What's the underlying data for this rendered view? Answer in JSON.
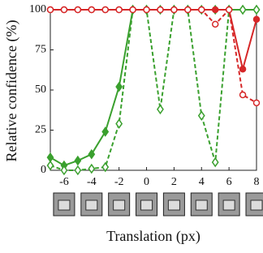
{
  "chart_data": {
    "type": "line",
    "xlabel": "Translation (px)",
    "ylabel": "Relative confidence (%)",
    "x": [
      -7,
      -6,
      -5,
      -4,
      -3,
      -2,
      -1,
      0,
      1,
      2,
      3,
      4,
      5,
      6,
      7,
      8
    ],
    "xlim": [
      -7,
      8
    ],
    "xticks": [
      -6,
      -4,
      -2,
      0,
      2,
      4,
      6,
      8
    ],
    "ylim": [
      0,
      100
    ],
    "yticks": [
      0,
      25,
      50,
      75,
      100
    ],
    "series": [
      {
        "color": "#3aa02e",
        "style": "solid",
        "marker": "diamond",
        "filled": true,
        "values": [
          8,
          3,
          6,
          10,
          24,
          52,
          100,
          100,
          100,
          100,
          100,
          100,
          100,
          100,
          100,
          100
        ]
      },
      {
        "color": "#3aa02e",
        "style": "dashed",
        "marker": "diamond",
        "filled": false,
        "values": [
          3,
          0,
          0,
          1,
          2,
          29,
          100,
          100,
          38,
          100,
          100,
          34,
          5,
          100,
          100,
          100
        ]
      },
      {
        "color": "#d62728",
        "style": "solid",
        "marker": "circle",
        "filled": true,
        "values": [
          100,
          100,
          100,
          100,
          100,
          100,
          100,
          100,
          100,
          100,
          100,
          100,
          100,
          100,
          63,
          94
        ]
      },
      {
        "color": "#d62728",
        "style": "dashed",
        "marker": "circle",
        "filled": false,
        "values": [
          100,
          100,
          100,
          100,
          100,
          100,
          100,
          100,
          100,
          100,
          100,
          100,
          91,
          100,
          47,
          42
        ]
      }
    ]
  }
}
